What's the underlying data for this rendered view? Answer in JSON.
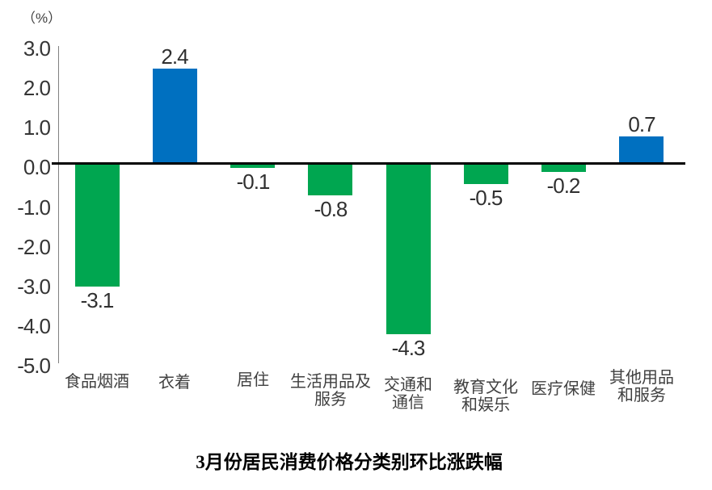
{
  "chart_data": {
    "type": "bar",
    "title": "3月份居民消费价格分类别环比涨跌幅",
    "unit_label": "（%）",
    "categories": [
      "食品烟酒",
      "衣着",
      "居住",
      "生活用品及服务",
      "交通和通信",
      "教育文化和娱乐",
      "医疗保健",
      "其他用品和服务"
    ],
    "category_lines": [
      [
        "食品烟酒"
      ],
      [
        "衣着"
      ],
      [
        "居住"
      ],
      [
        "生活用品及",
        "服务"
      ],
      [
        "交通和",
        "通信"
      ],
      [
        "教育文化",
        "和娱乐"
      ],
      [
        "医疗保健"
      ],
      [
        "其他用品",
        "和服务"
      ]
    ],
    "values": [
      -3.1,
      2.4,
      -0.1,
      -0.8,
      -4.3,
      -0.5,
      -0.2,
      0.7
    ],
    "value_labels": [
      "-3.1",
      "2.4",
      "-0.1",
      "-0.8",
      "-4.3",
      "-0.5",
      "-0.2",
      "0.7"
    ],
    "y_ticks": [
      "3.0",
      "2.0",
      "1.0",
      "0.0",
      "-1.0",
      "-2.0",
      "-3.0",
      "-4.0",
      "-5.0"
    ],
    "ylim": [
      -5.0,
      3.0
    ],
    "y_step": 1.0,
    "xlabel": "",
    "ylabel": "（%）",
    "grid": false,
    "legend": null,
    "colors": {
      "positive_bar": "#0070C0",
      "negative_bar": "#00A650",
      "zero_line": "#000000",
      "y_axis_line": "#808080",
      "tick_label": "#353535",
      "value_label": "#303030",
      "category_label": "#404040",
      "title": "#000000",
      "background": "#FFFFFF"
    }
  }
}
